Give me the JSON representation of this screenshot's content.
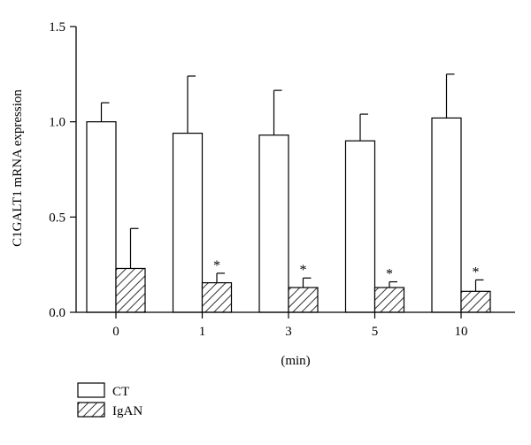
{
  "chart_data": {
    "type": "bar",
    "ylabel": "C1GALT1 mRNA expression",
    "xlabel": "(min)",
    "ylim": [
      0,
      1.5
    ],
    "yticks": [
      "0.0",
      "0.5",
      "1.0",
      "1.5"
    ],
    "categories": [
      "0",
      "1",
      "3",
      "5",
      "10"
    ],
    "series": [
      {
        "name": "CT",
        "pattern": "open",
        "values": [
          1.0,
          0.94,
          0.93,
          0.9,
          1.02
        ],
        "errors": [
          0.1,
          0.3,
          0.235,
          0.14,
          0.23
        ],
        "significance": [
          "",
          "",
          "",
          "",
          ""
        ]
      },
      {
        "name": "IgAN",
        "pattern": "hatched",
        "values": [
          0.23,
          0.155,
          0.13,
          0.13,
          0.11
        ],
        "errors": [
          0.21,
          0.05,
          0.05,
          0.03,
          0.06
        ],
        "significance": [
          "",
          "*",
          "*",
          "*",
          "*"
        ]
      }
    ],
    "legend_position": "bottom-left",
    "grid": false
  }
}
